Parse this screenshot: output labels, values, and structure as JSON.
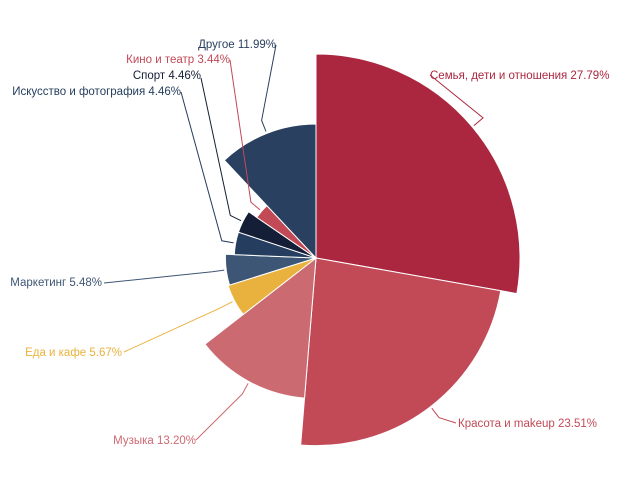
{
  "chart_data": {
    "type": "pie",
    "title": "",
    "radius_encodes": "share",
    "slices": [
      {
        "label": "Семья, дети и отношения",
        "value": 27.79,
        "value_label": "27.79%",
        "color": "#ab2740"
      },
      {
        "label": "Красота и makeup",
        "value": 23.51,
        "value_label": "23.51%",
        "color": "#c24956"
      },
      {
        "label": "Музыка",
        "value": 13.2,
        "value_label": "13.20%",
        "color": "#cc6a72"
      },
      {
        "label": "Еда и кафе",
        "value": 5.67,
        "value_label": "5.67%",
        "color": "#e9b23e"
      },
      {
        "label": "Маркетинг",
        "value": 5.48,
        "value_label": "5.48%",
        "color": "#3e5675"
      },
      {
        "label": "Искусство и фотография",
        "value": 4.46,
        "value_label": "4.46%",
        "color": "#253d5e"
      },
      {
        "label": "Спорт",
        "value": 4.46,
        "value_label": "4.46%",
        "color": "#141e36"
      },
      {
        "label": "Кино и театр",
        "value": 3.44,
        "value_label": "3.44%",
        "color": "#c24956"
      },
      {
        "label": "Другое",
        "value": 11.99,
        "value_label": "11.99%",
        "color": "#2a4060"
      }
    ]
  }
}
